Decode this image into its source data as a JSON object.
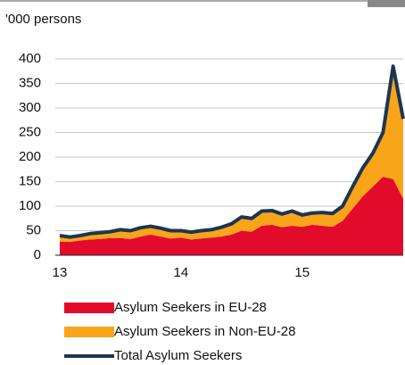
{
  "chart_data": {
    "type": "stacked-area",
    "y_label": "'000 persons",
    "categories": [
      "13",
      null,
      null,
      null,
      null,
      null,
      null,
      null,
      null,
      null,
      null,
      null,
      "14",
      null,
      null,
      null,
      null,
      null,
      null,
      null,
      null,
      null,
      null,
      null,
      "15",
      null,
      null,
      null,
      null,
      null,
      null,
      null,
      null,
      null,
      null
    ],
    "series": [
      {
        "name": "Asylum Seekers in EU-28",
        "color": "#e30b2c",
        "values": [
          28,
          27,
          30,
          32,
          33,
          35,
          35,
          33,
          38,
          42,
          38,
          34,
          36,
          32,
          34,
          36,
          38,
          42,
          50,
          48,
          60,
          62,
          57,
          60,
          58,
          62,
          60,
          58,
          70,
          95,
          120,
          140,
          160,
          155,
          115
        ]
      },
      {
        "name": "Asylum Seekers in Non-EU-28",
        "color": "#f9a51a",
        "values": [
          12,
          10,
          10,
          12,
          13,
          13,
          17,
          17,
          18,
          17,
          17,
          16,
          14,
          15,
          16,
          16,
          19,
          22,
          28,
          27,
          30,
          29,
          27,
          30,
          24,
          24,
          27,
          27,
          30,
          45,
          58,
          68,
          90,
          230,
          163
        ]
      },
      {
        "name": "Total Asylum Seekers",
        "color": "#1c3553",
        "kind": "line",
        "values": [
          40,
          37,
          40,
          44,
          46,
          48,
          52,
          50,
          56,
          59,
          55,
          50,
          50,
          47,
          50,
          52,
          57,
          64,
          78,
          75,
          90,
          91,
          84,
          90,
          82,
          86,
          87,
          85,
          100,
          140,
          178,
          208,
          250,
          385,
          278
        ]
      }
    ],
    "ylim": [
      0,
      400
    ],
    "yticks": [
      0,
      50,
      100,
      150,
      200,
      250,
      300,
      350,
      400
    ],
    "grid": true
  }
}
